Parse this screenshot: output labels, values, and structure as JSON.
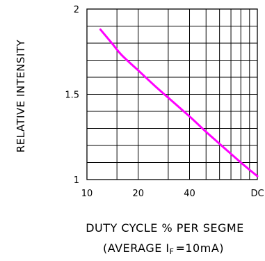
{
  "chart_data": {
    "type": "line",
    "title": "",
    "xlabel": "DUTY CYCLE % PER SEGME",
    "xlabel_sub_before": "(AVERAGE I",
    "xlabel_sub_subscript": "F",
    "xlabel_sub_after": "=10mA)",
    "ylabel": "RELATIVE INTENSITY",
    "x_scale": "log",
    "xlim": [
      10,
      100
    ],
    "ylim": [
      1,
      2
    ],
    "x_tick_labels": [
      {
        "value": 10,
        "label": "10"
      },
      {
        "value": 20,
        "label": "20"
      },
      {
        "value": 40,
        "label": "40"
      },
      {
        "value": 100,
        "label": "DC"
      }
    ],
    "y_tick_labels": [
      {
        "value": 1,
        "label": "1"
      },
      {
        "value": 1.5,
        "label": "1.5"
      },
      {
        "value": 2,
        "label": "2"
      }
    ],
    "x_gridlines": [
      10,
      15,
      20,
      30,
      40,
      50,
      60,
      70,
      80,
      90,
      100
    ],
    "y_gridlines": [
      1,
      1.1,
      1.2,
      1.3,
      1.4,
      1.5,
      1.6,
      1.7,
      1.8,
      1.9,
      2
    ],
    "grid": true,
    "line_color": "#ff00ff",
    "series": [
      {
        "x": [
          12,
          14,
          16,
          20,
          25,
          30,
          40,
          50,
          60,
          80,
          100
        ],
        "y": [
          1.88,
          1.8,
          1.73,
          1.64,
          1.55,
          1.48,
          1.37,
          1.28,
          1.21,
          1.1,
          1.02
        ]
      }
    ]
  }
}
